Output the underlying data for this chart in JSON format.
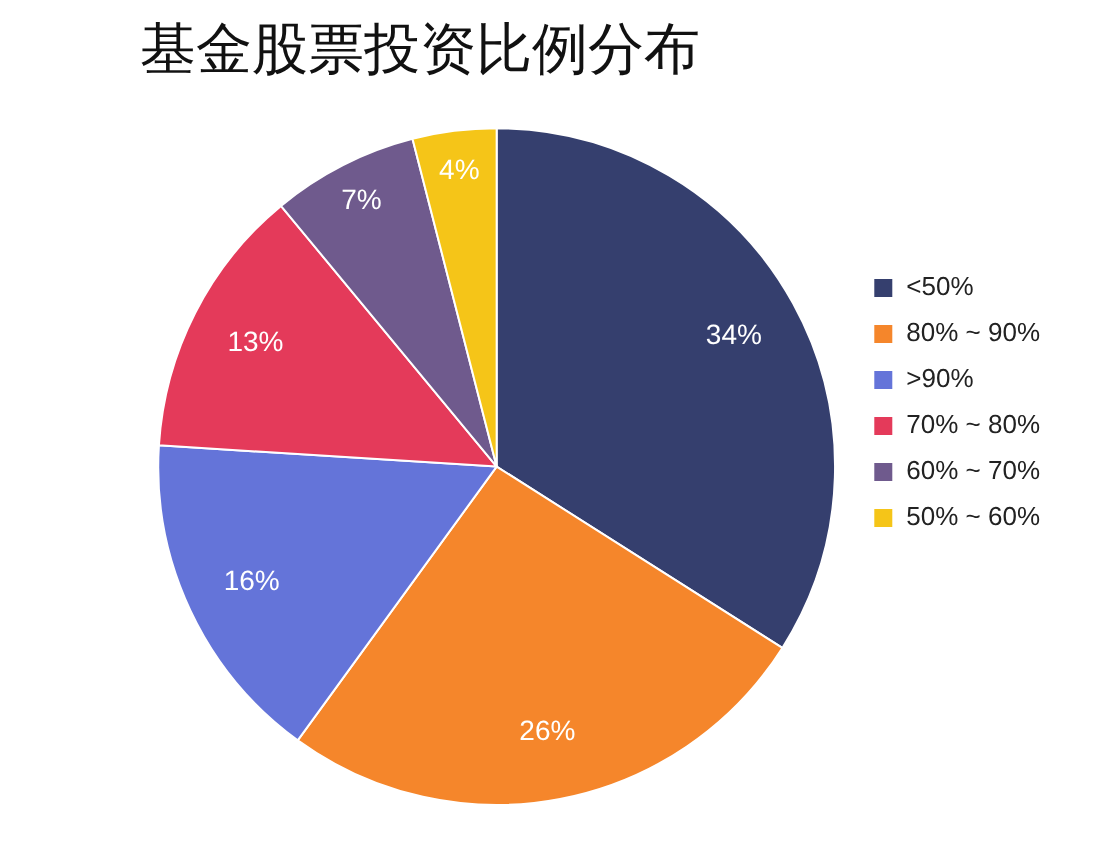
{
  "chart_data": {
    "type": "pie",
    "title": "基金股票投资比例分布",
    "categories": [
      "<50%",
      "80% ~ 90%",
      ">90%",
      "70% ~ 80%",
      "60% ~ 70%",
      "50% ~ 60%"
    ],
    "values": [
      34,
      26,
      16,
      13,
      7,
      4
    ],
    "colors": [
      "#353f6e",
      "#f5862b",
      "#6474d9",
      "#e43a5a",
      "#6f5a8d",
      "#f5c518"
    ],
    "value_labels": [
      "34%",
      "26%",
      "16%",
      "13%",
      "7%",
      "4%"
    ],
    "legend": "right"
  }
}
